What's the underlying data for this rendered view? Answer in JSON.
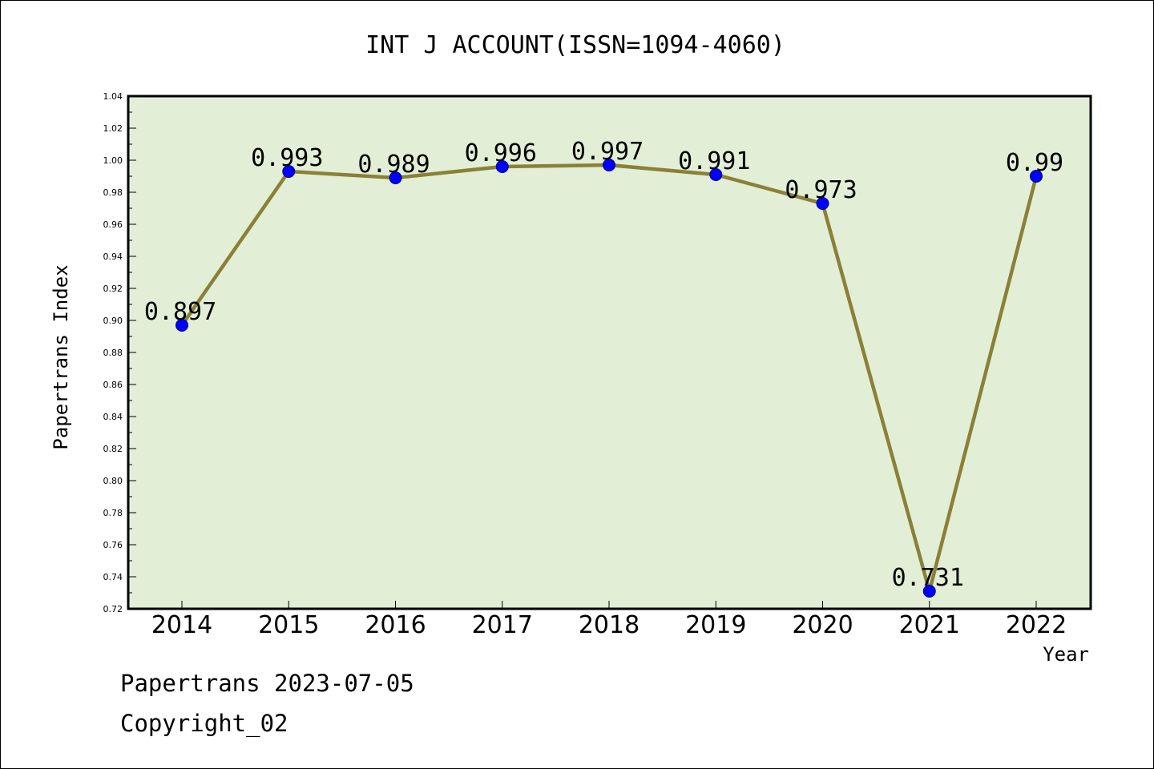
{
  "chart_data": {
    "type": "line",
    "title": "INT J ACCOUNT(ISSN=1094-4060)",
    "xlabel": "Year",
    "ylabel": "Papertrans Index",
    "categories": [
      "2014",
      "2015",
      "2016",
      "2017",
      "2018",
      "2019",
      "2020",
      "2021",
      "2022"
    ],
    "values": [
      0.897,
      0.993,
      0.989,
      0.996,
      0.997,
      0.991,
      0.973,
      0.731,
      0.99
    ],
    "data_labels": [
      "0.897",
      "0.993",
      "0.989",
      "0.996",
      "0.997",
      "0.991",
      "0.973",
      "0.731",
      "0.99"
    ],
    "ylim": [
      0.72,
      1.04
    ],
    "yticks": [
      "0.72",
      "0.74",
      "0.76",
      "0.78",
      "0.80",
      "0.82",
      "0.84",
      "0.86",
      "0.88",
      "0.90",
      "0.92",
      "0.94",
      "0.96",
      "0.98",
      "1.00",
      "1.02",
      "1.04"
    ],
    "grid": false,
    "colors": {
      "line": "#8b8036",
      "marker": "#0000ff",
      "plot_background": "#e2efd6"
    }
  },
  "footer": {
    "line1": "Papertrans 2023-07-05",
    "line2": "Copyright_02"
  }
}
